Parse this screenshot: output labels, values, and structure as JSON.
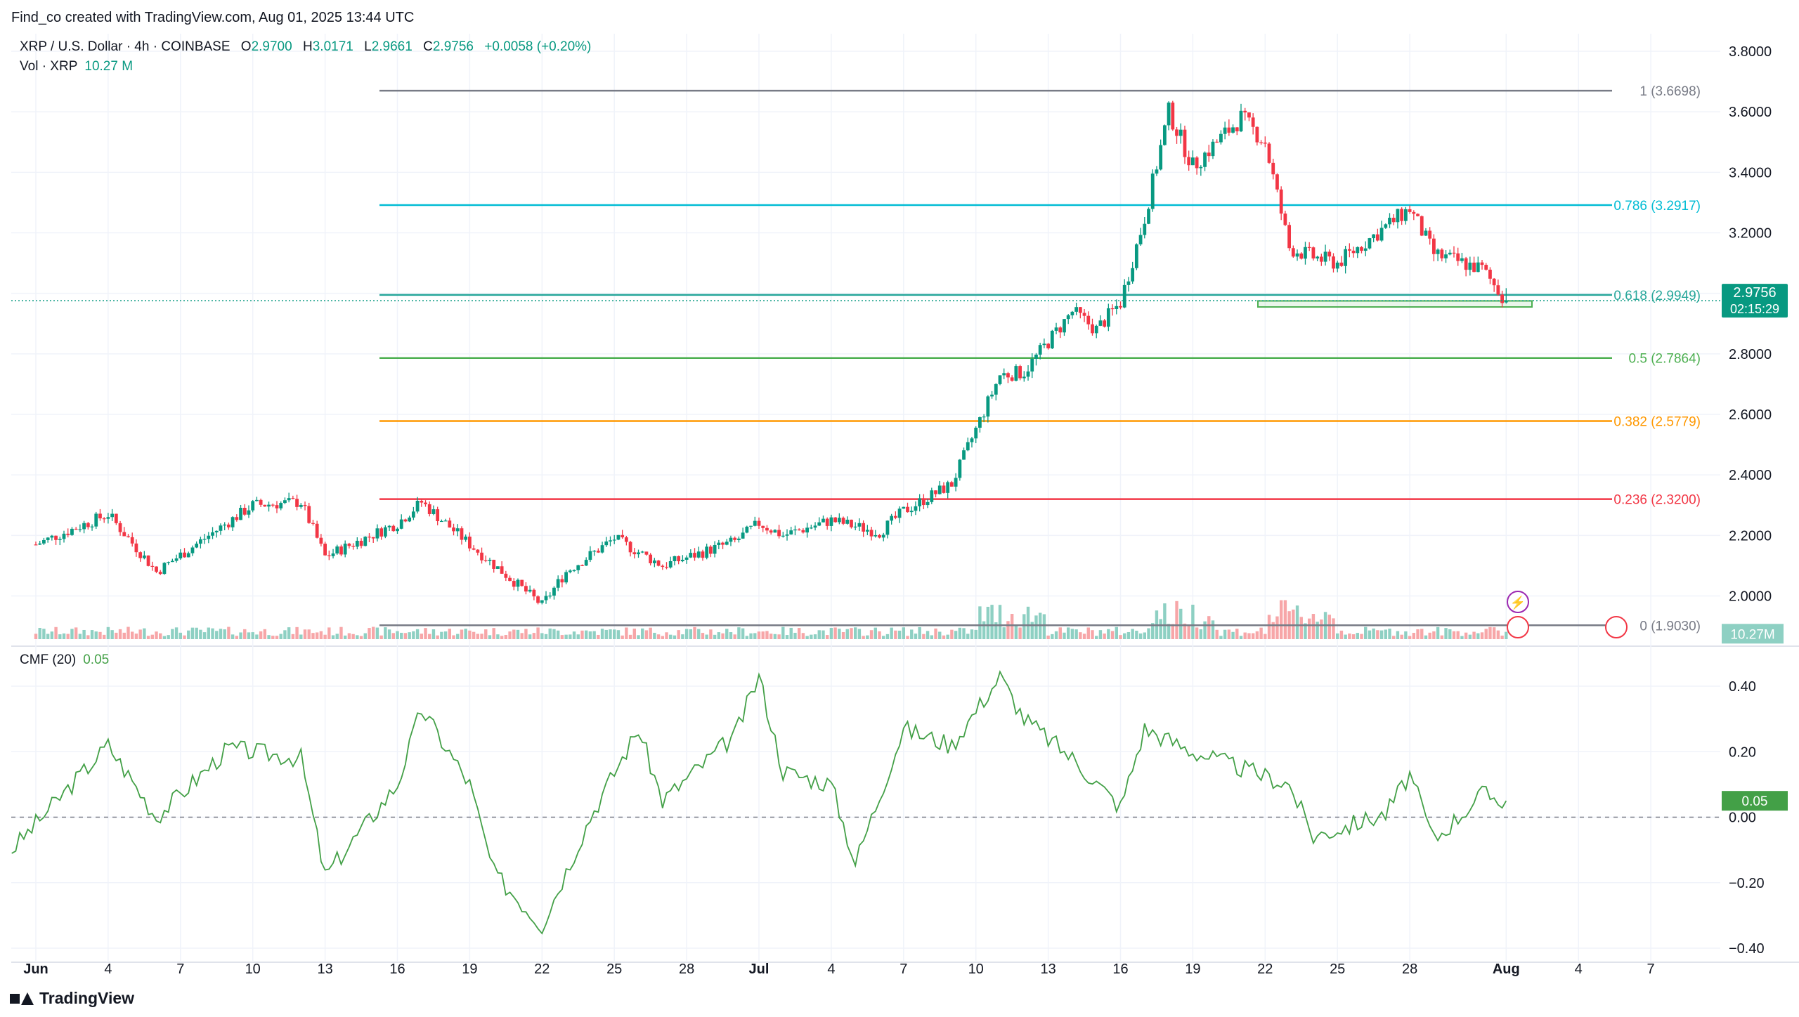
{
  "header": {
    "created_line": "Find_co created with TradingView.com, Aug 01, 2025 13:44 UTC"
  },
  "legend": {
    "symbol": "XRP / U.S. Dollar · 4h · COINBASE",
    "open_label": "O",
    "open": "2.9700",
    "high_label": "H",
    "high": "3.0171",
    "low_label": "L",
    "low": "2.9661",
    "close_label": "C",
    "close": "2.9756",
    "change": "+0.0058 (+0.20%)",
    "vol_label": "Vol · XRP",
    "vol_value": "10.27 M",
    "cmf_label": "CMF (20)",
    "cmf_value": "0.05"
  },
  "brand": {
    "name": "TradingView"
  },
  "colors": {
    "up": "#089981",
    "down": "#f23645",
    "up_vol": "#8ed0c3",
    "down_vol": "#f7a6a8",
    "cmf": "#43a047",
    "grid": "#f0f3fa",
    "axis_text": "#131722"
  },
  "chart_data": [
    {
      "type": "candlestick",
      "title": "XRP / U.S. Dollar · 4h · COINBASE",
      "interval": "4h",
      "x_ticks": [
        "Jun",
        "4",
        "7",
        "10",
        "13",
        "16",
        "19",
        "22",
        "25",
        "28",
        "Jul",
        "4",
        "7",
        "10",
        "13",
        "16",
        "19",
        "22",
        "25",
        "28",
        "Aug",
        "4",
        "7"
      ],
      "y_ticks": [
        "3.8000",
        "3.6000",
        "3.4000",
        "3.2000",
        "3.0000",
        "2.8000",
        "2.6000",
        "2.4000",
        "2.2000",
        "2.0000"
      ],
      "ylim": [
        1.94,
        3.86
      ],
      "current_price": {
        "value": "2.9756",
        "countdown": "02:15:29"
      },
      "key_points": [
        {
          "date": "Jun 1",
          "close": 2.17
        },
        {
          "date": "Jun 4",
          "close": 2.27
        },
        {
          "date": "Jun 6",
          "close": 2.08
        },
        {
          "date": "Jun 10",
          "close": 2.3
        },
        {
          "date": "Jun 12",
          "close": 2.31
        },
        {
          "date": "Jun 13",
          "close": 2.13
        },
        {
          "date": "Jun 16",
          "close": 2.24
        },
        {
          "date": "Jun 17",
          "close": 2.31
        },
        {
          "date": "Jun 19",
          "close": 2.17
        },
        {
          "date": "Jun 22",
          "close": 1.97
        },
        {
          "date": "Jun 23",
          "close": 2.08
        },
        {
          "date": "Jun 25",
          "close": 2.19
        },
        {
          "date": "Jun 27",
          "close": 2.1
        },
        {
          "date": "Jun 30",
          "close": 2.18
        },
        {
          "date": "Jul 1",
          "close": 2.24
        },
        {
          "date": "Jul 2",
          "close": 2.2
        },
        {
          "date": "Jul 4",
          "close": 2.25
        },
        {
          "date": "Jul 6",
          "close": 2.21
        },
        {
          "date": "Jul 7",
          "close": 2.28
        },
        {
          "date": "Jul 9",
          "close": 2.37
        },
        {
          "date": "Jul 11",
          "close": 2.73
        },
        {
          "date": "Jul 12",
          "close": 2.74
        },
        {
          "date": "Jul 13",
          "close": 2.84
        },
        {
          "date": "Jul 14",
          "close": 2.94
        },
        {
          "date": "Jul 15",
          "close": 2.88
        },
        {
          "date": "Jul 16",
          "close": 2.97
        },
        {
          "date": "Jul 17",
          "close": 3.25
        },
        {
          "date": "Jul 18",
          "close": 3.6
        },
        {
          "date": "Jul 19",
          "close": 3.42
        },
        {
          "date": "Jul 21",
          "close": 3.58
        },
        {
          "date": "Jul 22",
          "close": 3.5
        },
        {
          "date": "Jul 23",
          "close": 3.15
        },
        {
          "date": "Jul 24",
          "close": 3.12
        },
        {
          "date": "Jul 25",
          "close": 3.1
        },
        {
          "date": "Jul 27",
          "close": 3.22
        },
        {
          "date": "Jul 28",
          "close": 3.28
        },
        {
          "date": "Jul 29",
          "close": 3.13
        },
        {
          "date": "Jul 31",
          "close": 3.08
        },
        {
          "date": "Aug 1",
          "close": 2.9756
        }
      ],
      "fib_levels": [
        {
          "ratio": 1,
          "price": 3.6698,
          "label": "1 (3.6698)",
          "color": "#787b86"
        },
        {
          "ratio": 0.786,
          "price": 3.2917,
          "label": "0.786 (3.2917)",
          "color": "#00bcd4"
        },
        {
          "ratio": 0.618,
          "price": 2.9949,
          "label": "0.618 (2.9949)",
          "color": "#26a69a"
        },
        {
          "ratio": 0.5,
          "price": 2.7864,
          "label": "0.5 (2.7864)",
          "color": "#4caf50"
        },
        {
          "ratio": 0.382,
          "price": 2.5779,
          "label": "0.382 (2.5779)",
          "color": "#ff9800"
        },
        {
          "ratio": 0.236,
          "price": 2.32,
          "label": "0.236 (2.3200)",
          "color": "#f23645"
        },
        {
          "ratio": 0,
          "price": 1.903,
          "label": "0 (1.9030)",
          "color": "#787b86"
        }
      ],
      "support_zone": [
        2.955,
        2.975
      ],
      "volume_badge": "10.27M"
    },
    {
      "type": "line",
      "title": "CMF (20)",
      "y_ticks": [
        "0.40",
        "0.20",
        "0.00",
        "−0.20",
        "−0.40"
      ],
      "ylim": [
        -0.42,
        0.44
      ],
      "zero_line": true,
      "last_value": "0.05",
      "key_points": [
        {
          "date": "May 31",
          "value": -0.1
        },
        {
          "date": "Jun 4",
          "value": 0.22
        },
        {
          "date": "Jun 6",
          "value": 0.0
        },
        {
          "date": "Jun 9",
          "value": 0.21
        },
        {
          "date": "Jun 12",
          "value": 0.18
        },
        {
          "date": "Jun 13",
          "value": -0.18
        },
        {
          "date": "Jun 16",
          "value": 0.1
        },
        {
          "date": "Jun 17",
          "value": 0.33
        },
        {
          "date": "Jun 19",
          "value": 0.1
        },
        {
          "date": "Jun 20",
          "value": -0.17
        },
        {
          "date": "Jun 22",
          "value": -0.33
        },
        {
          "date": "Jun 24",
          "value": 0.0
        },
        {
          "date": "Jun 26",
          "value": 0.27
        },
        {
          "date": "Jun 27",
          "value": 0.05
        },
        {
          "date": "Jun 30",
          "value": 0.25
        },
        {
          "date": "Jul 1",
          "value": 0.43
        },
        {
          "date": "Jul 2",
          "value": 0.14
        },
        {
          "date": "Jul 4",
          "value": 0.1
        },
        {
          "date": "Jul 5",
          "value": -0.14
        },
        {
          "date": "Jul 7",
          "value": 0.27
        },
        {
          "date": "Jul 9",
          "value": 0.22
        },
        {
          "date": "Jul 11",
          "value": 0.43
        },
        {
          "date": "Jul 12",
          "value": 0.3
        },
        {
          "date": "Jul 14",
          "value": 0.18
        },
        {
          "date": "Jul 16",
          "value": 0.03
        },
        {
          "date": "Jul 17",
          "value": 0.27
        },
        {
          "date": "Jul 19",
          "value": 0.2
        },
        {
          "date": "Jul 21",
          "value": 0.15
        },
        {
          "date": "Jul 23",
          "value": 0.1
        },
        {
          "date": "Jul 24",
          "value": -0.06
        },
        {
          "date": "Jul 27",
          "value": 0.01
        },
        {
          "date": "Jul 28",
          "value": 0.13
        },
        {
          "date": "Jul 29",
          "value": -0.07
        },
        {
          "date": "Jul 31",
          "value": 0.07
        },
        {
          "date": "Aug 1",
          "value": 0.05
        }
      ]
    }
  ]
}
